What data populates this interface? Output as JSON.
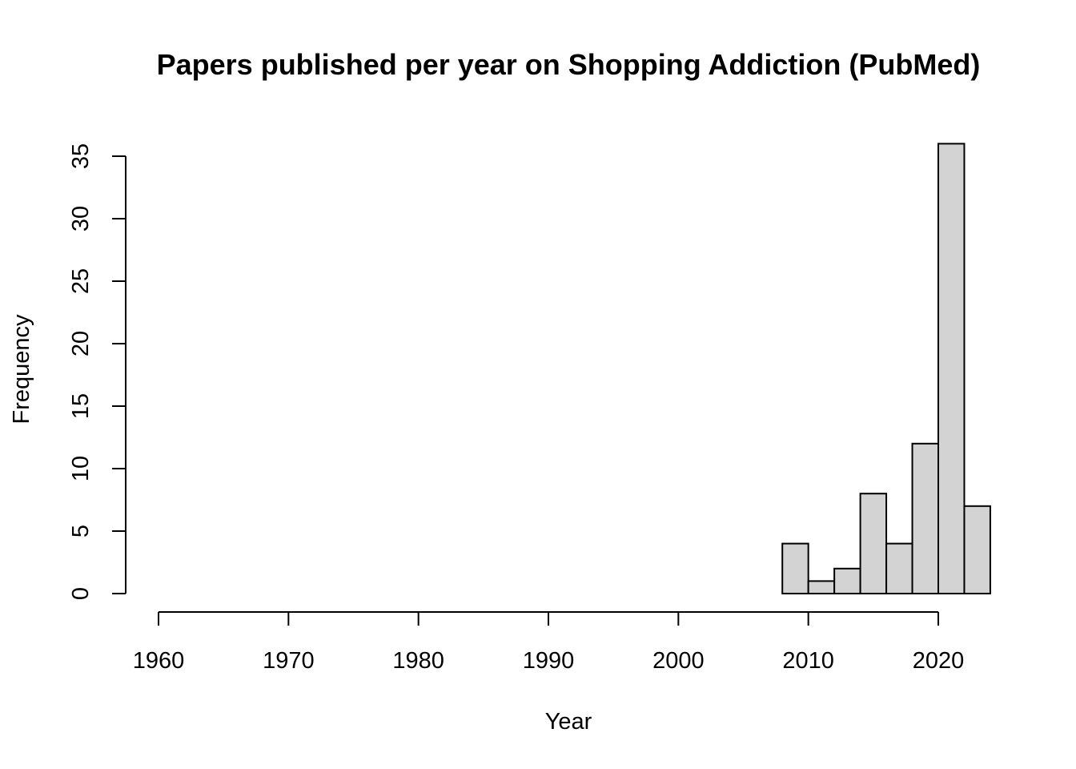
{
  "chart_data": {
    "type": "bar",
    "title": "Papers published per year on Shopping Addiction (PubMed)",
    "xlabel": "Year",
    "ylabel": "Frequency",
    "xlim": [
      1960,
      2024
    ],
    "ylim": [
      0,
      36
    ],
    "x_ticks": [
      1960,
      1970,
      1980,
      1990,
      2000,
      2010,
      2020
    ],
    "y_ticks": [
      0,
      5,
      10,
      15,
      20,
      25,
      30,
      35
    ],
    "bin_width": 2,
    "bins": [
      {
        "start": 2008,
        "end": 2010,
        "value": 4
      },
      {
        "start": 2010,
        "end": 2012,
        "value": 1
      },
      {
        "start": 2012,
        "end": 2014,
        "value": 2
      },
      {
        "start": 2014,
        "end": 2016,
        "value": 8
      },
      {
        "start": 2016,
        "end": 2018,
        "value": 4
      },
      {
        "start": 2018,
        "end": 2020,
        "value": 12
      },
      {
        "start": 2020,
        "end": 2022,
        "value": 36
      },
      {
        "start": 2022,
        "end": 2024,
        "value": 7
      }
    ],
    "bar_color": "#d3d3d3",
    "bar_border_color": "#000000",
    "grid": false,
    "legend": "none"
  }
}
